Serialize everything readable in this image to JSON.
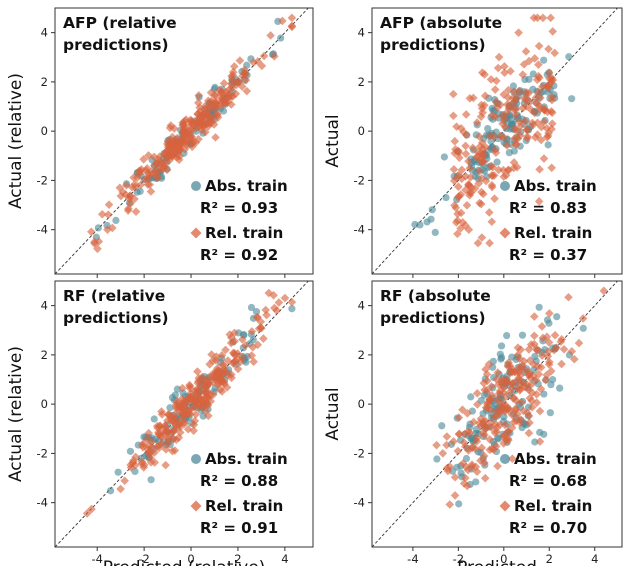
{
  "colors": {
    "abs": "#4e8a9a",
    "rel": "#d9623d"
  },
  "axis_labels": {
    "y_relative": "Actual (relative)",
    "y_absolute": "Actual",
    "x_relative": "Predicted (relative)",
    "x_absolute": "Predicted"
  },
  "chart_data": [
    {
      "type": "scatter",
      "title_lines": [
        "AFP (relative",
        "predictions)"
      ],
      "ylabel": "Actual (relative)",
      "xlabel": "",
      "xlim": [
        -5.8,
        5.2
      ],
      "ylim": [
        -5.8,
        5.0
      ],
      "xticks": [
        -4,
        -2,
        0,
        2,
        4
      ],
      "yticks": [
        -4,
        -2,
        0,
        2,
        4
      ],
      "show_xtick_labels": false,
      "legend": {
        "placement": "bottom-right",
        "abs_label": "Abs. train",
        "abs_r2": "R² = 0.93",
        "rel_label": "Rel. train",
        "rel_r2": "R² = 0.92"
      },
      "series": [
        {
          "key": "abs",
          "mode": "rel",
          "spread": 0.38,
          "n": 110,
          "seed": 11,
          "marker": "circle"
        },
        {
          "key": "rel",
          "mode": "rel",
          "spread": 0.42,
          "n": 260,
          "seed": 12,
          "marker": "diamond"
        }
      ]
    },
    {
      "type": "scatter",
      "title_lines": [
        "AFP (absolute",
        "predictions)"
      ],
      "ylabel": "Actual",
      "xlabel": "",
      "xlim": [
        -5.8,
        5.2
      ],
      "ylim": [
        -5.8,
        5.0
      ],
      "xticks": [
        -4,
        -2,
        0,
        2,
        4
      ],
      "yticks": [
        -4,
        -2,
        0,
        2,
        4
      ],
      "show_xtick_labels": false,
      "legend": {
        "placement": "bottom-right",
        "abs_label": "Abs. train",
        "abs_r2": "R² = 0.83",
        "rel_label": "Rel. train",
        "rel_r2": "R² = 0.37"
      },
      "series": [
        {
          "key": "abs",
          "mode": "abs",
          "spread": 0.75,
          "n": 150,
          "seed": 21,
          "marker": "circle"
        },
        {
          "key": "rel",
          "mode": "cols",
          "spread": 1.5,
          "n": 230,
          "seed": 22,
          "marker": "diamond"
        }
      ]
    },
    {
      "type": "scatter",
      "title_lines": [
        "RF (relative",
        "predictions)"
      ],
      "ylabel": "Actual (relative)",
      "xlabel": "Predicted (relative)",
      "xlim": [
        -5.8,
        5.2
      ],
      "ylim": [
        -5.8,
        5.0
      ],
      "xticks": [
        -4,
        -2,
        0,
        2,
        4
      ],
      "yticks": [
        -4,
        -2,
        0,
        2,
        4
      ],
      "show_xtick_labels": true,
      "legend": {
        "placement": "bottom-right",
        "abs_label": "Abs. train",
        "abs_r2": "R² = 0.88",
        "rel_label": "Rel. train",
        "rel_r2": "R² = 0.91"
      },
      "series": [
        {
          "key": "abs",
          "mode": "rel",
          "spread": 0.55,
          "n": 110,
          "seed": 31,
          "marker": "circle"
        },
        {
          "key": "rel",
          "mode": "rel",
          "spread": 0.5,
          "n": 260,
          "seed": 32,
          "marker": "diamond"
        }
      ]
    },
    {
      "type": "scatter",
      "title_lines": [
        "RF (absolute",
        "predictions)"
      ],
      "ylabel": "Actual",
      "xlabel": "Predicted",
      "xlim": [
        -5.8,
        5.2
      ],
      "ylim": [
        -5.8,
        5.0
      ],
      "xticks": [
        -4,
        -2,
        0,
        2,
        4
      ],
      "yticks": [
        -4,
        -2,
        0,
        2,
        4
      ],
      "show_xtick_labels": true,
      "legend": {
        "placement": "bottom-right",
        "abs_label": "Abs. train",
        "abs_r2": "R² = 0.68",
        "rel_label": "Rel. train",
        "rel_r2": "R² = 0.70"
      },
      "series": [
        {
          "key": "abs",
          "mode": "abs",
          "spread": 1.1,
          "n": 150,
          "seed": 41,
          "marker": "circle"
        },
        {
          "key": "rel",
          "mode": "abs",
          "spread": 1.1,
          "n": 230,
          "seed": 42,
          "marker": "diamond"
        }
      ]
    }
  ]
}
